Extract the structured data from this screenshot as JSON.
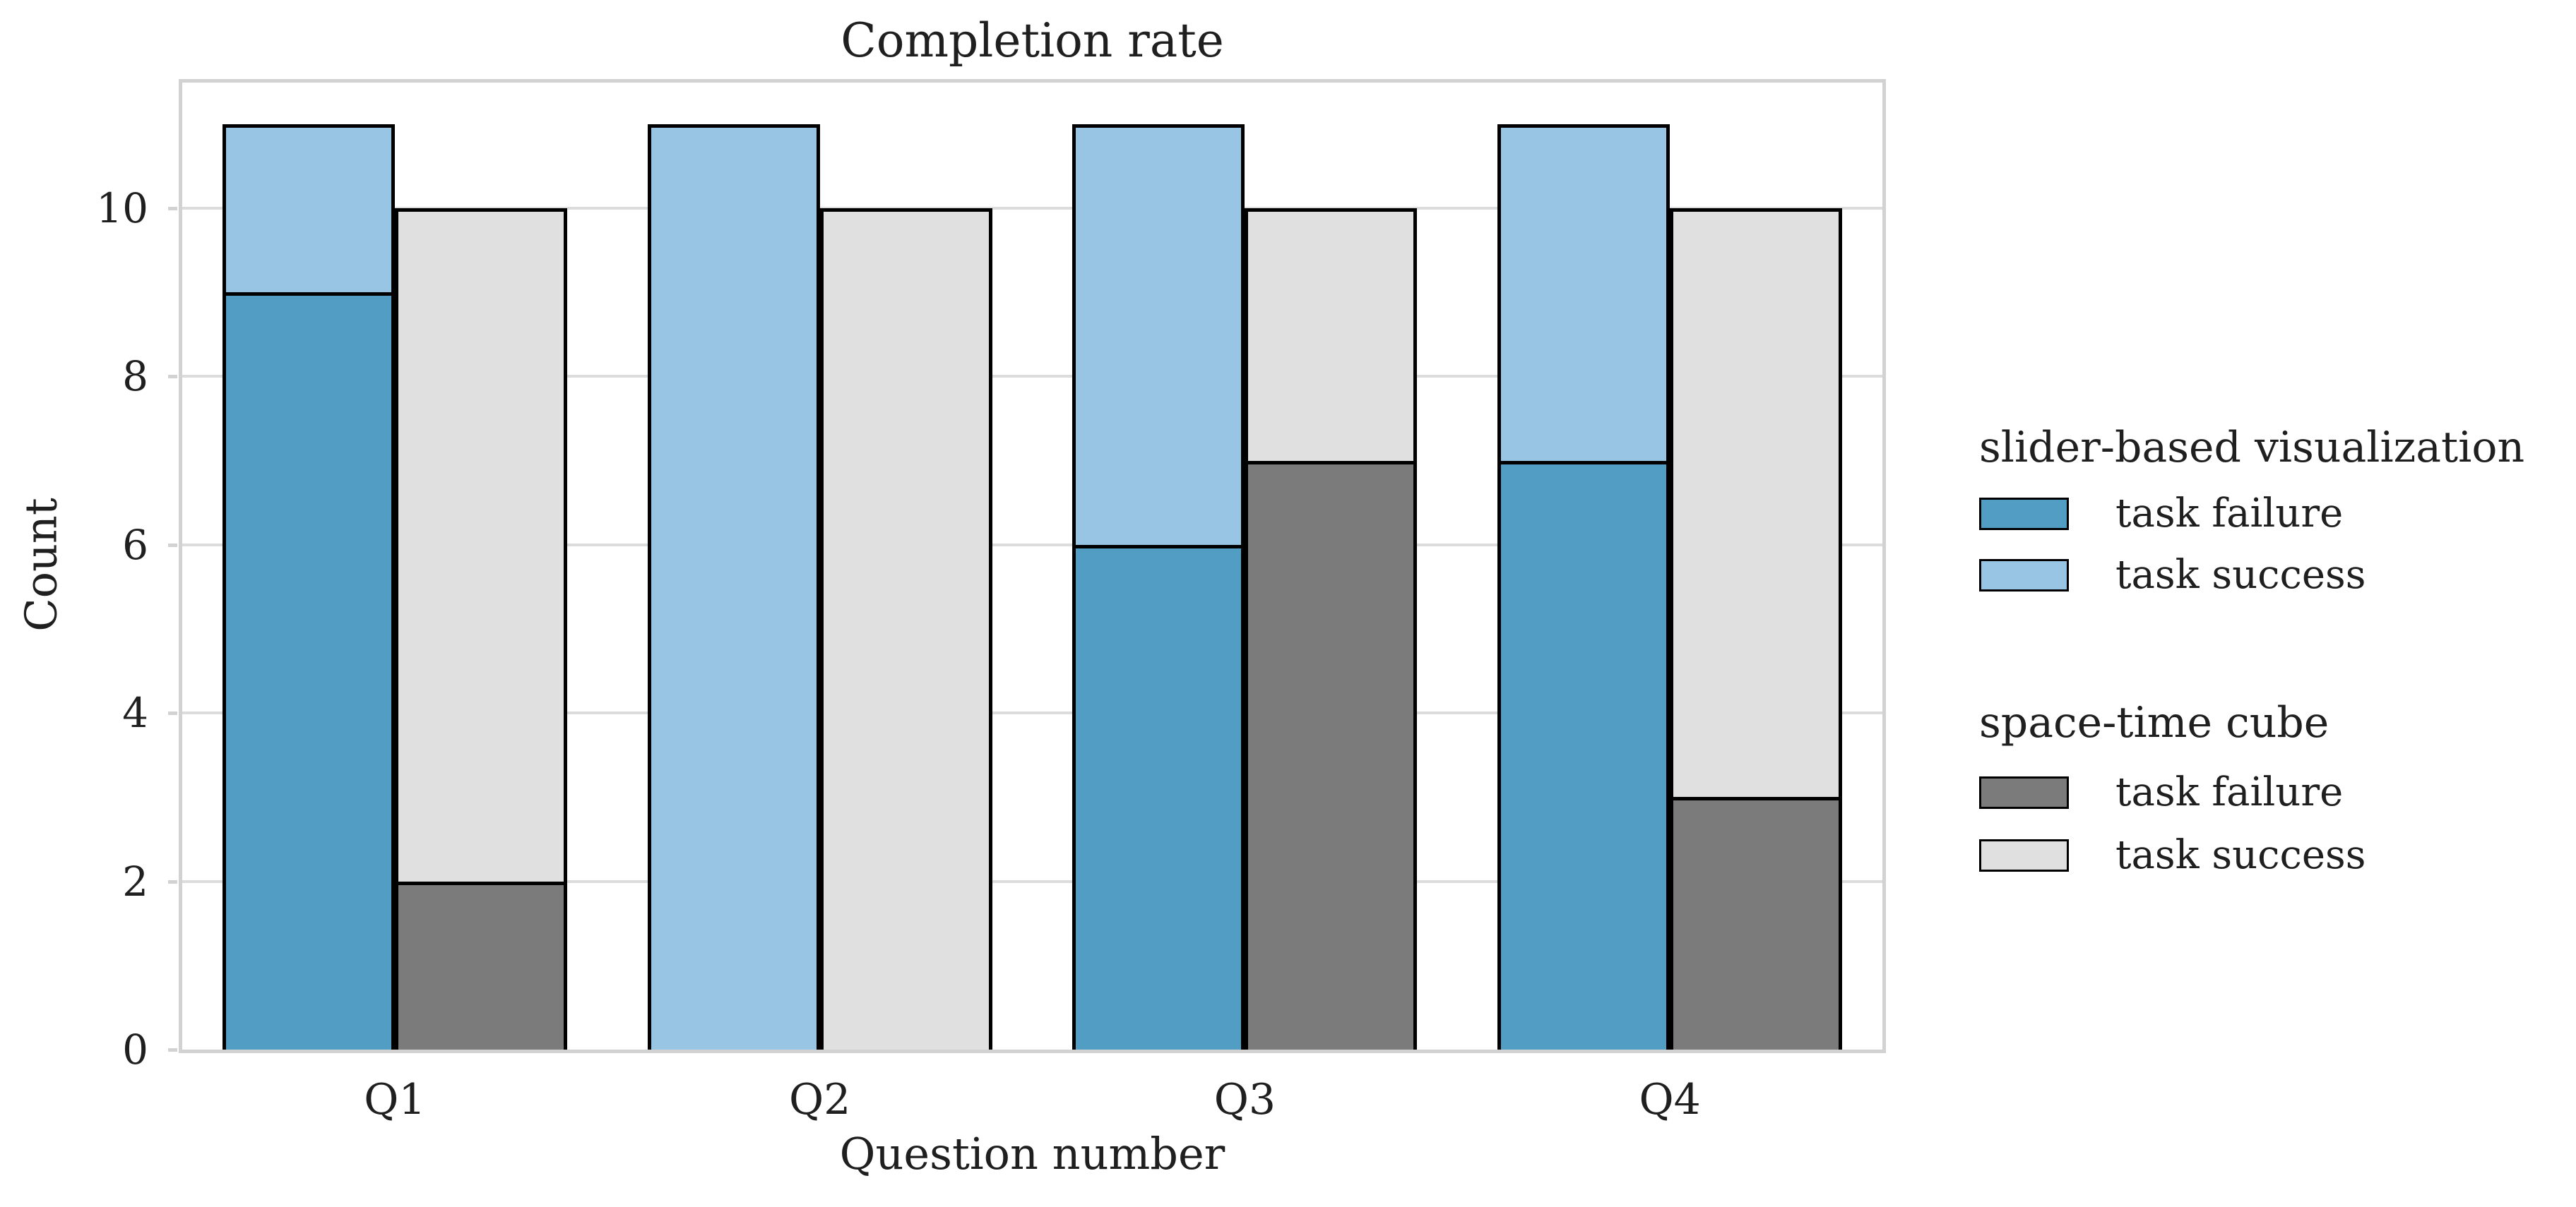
{
  "chart_data": {
    "type": "bar",
    "stacked": true,
    "title": "Completion rate",
    "xlabel": "Question number",
    "ylabel": "Count",
    "categories": [
      "Q1",
      "Q2",
      "Q3",
      "Q4"
    ],
    "y_ticks": [
      0,
      2,
      4,
      6,
      8,
      10
    ],
    "y_gridlines": [
      2,
      4,
      6,
      8,
      10
    ],
    "ylim": [
      0,
      11.5
    ],
    "grid": "horizontal",
    "legend_position": "right",
    "groups": [
      {
        "name": "slider-based visualization",
        "slug": "slider",
        "series": [
          {
            "name": "task failure",
            "values": [
              9,
              0,
              6,
              7
            ],
            "color": "#529dc3"
          },
          {
            "name": "task success",
            "values": [
              2,
              11,
              5,
              4
            ],
            "color": "#97c5e3"
          }
        ],
        "totals": [
          11,
          11,
          11,
          11
        ]
      },
      {
        "name": "space-time cube",
        "slug": "cube",
        "series": [
          {
            "name": "task failure",
            "values": [
              2,
              0,
              7,
              3
            ],
            "color": "#7b7b7b"
          },
          {
            "name": "task success",
            "values": [
              8,
              10,
              3,
              7
            ],
            "color": "#e0e0e0"
          }
        ],
        "totals": [
          10,
          10,
          10,
          10
        ]
      }
    ]
  },
  "legend": {
    "groups": [
      {
        "title": "slider-based visualization",
        "items": [
          {
            "label": "task failure",
            "color": "#529dc3"
          },
          {
            "label": "task success",
            "color": "#97c5e3"
          }
        ]
      },
      {
        "title": "space-time cube",
        "items": [
          {
            "label": "task failure",
            "color": "#7b7b7b"
          },
          {
            "label": "task success",
            "color": "#e0e0e0"
          }
        ]
      }
    ]
  },
  "colors": {
    "slider_failure": "#529dc3",
    "slider_success": "#97c5e3",
    "cube_failure": "#7b7b7b",
    "cube_success": "#e0e0e0",
    "bar_edge": "#000000",
    "gridline": "#dcdcdc",
    "spine": "#d2d2d2",
    "text": "#1f1f1f",
    "background": "#ffffff"
  }
}
